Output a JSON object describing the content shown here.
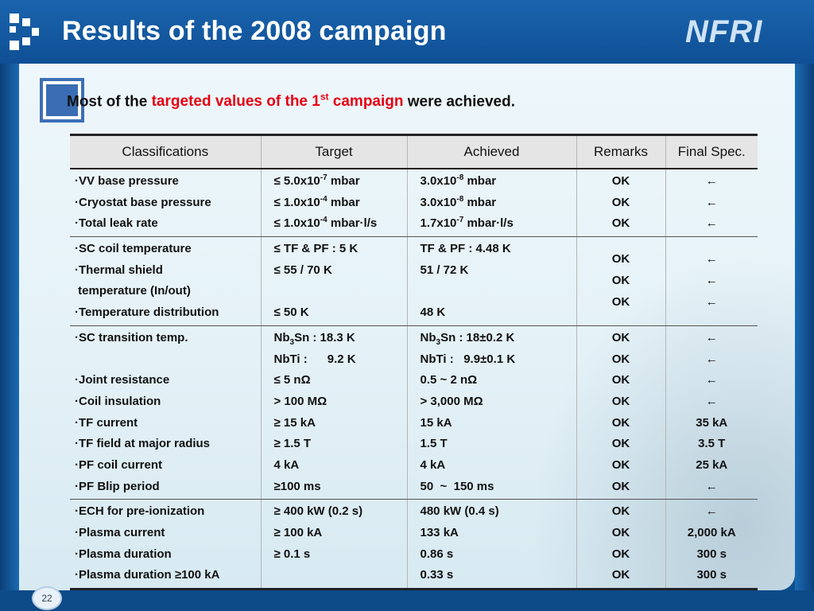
{
  "header": {
    "title": "Results of the 2008 campaign",
    "logo_text": "NFRI"
  },
  "headline": {
    "part1": "Most of the ",
    "highlight_a": "targeted values of the 1",
    "highlight_sup": "st",
    "highlight_b": " campaign",
    "part2": " were achieved."
  },
  "table": {
    "headers": [
      "Classifications",
      "Target",
      "Achieved",
      "Remarks",
      "Final Spec."
    ],
    "g1": {
      "r1": {
        "cls": "·VV base pressure",
        "tgt_a": "≤ 5.0x10",
        "tgt_sup": "-7",
        "tgt_b": " mbar",
        "ach_a": "3.0x10",
        "ach_sup": "-8",
        "ach_b": " mbar",
        "rem": "OK",
        "fin": "←"
      },
      "r2": {
        "cls": "·Cryostat base pressure",
        "tgt_a": "≤ 1.0x10",
        "tgt_sup": "-4",
        "tgt_b": " mbar",
        "ach_a": "3.0x10",
        "ach_sup": "-8",
        "ach_b": " mbar",
        "rem": "OK",
        "fin": "←"
      },
      "r3": {
        "cls": "·Total leak rate",
        "tgt_a": "≤ 1.0x10",
        "tgt_sup": "-4",
        "tgt_b": " mbar·l/s",
        "ach_a": "1.7x10",
        "ach_sup": "-7",
        "ach_b": " mbar·l/s",
        "rem": "OK",
        "fin": "←"
      }
    },
    "g2": {
      "cls": [
        "·SC coil temperature",
        "·Thermal shield",
        " temperature (In/out)",
        "·Temperature distribution"
      ],
      "tgt": [
        "≤ TF & PF : 5 K",
        "≤ 55 / 70 K",
        "",
        "≤ 50 K"
      ],
      "ach": [
        "TF & PF : 4.48 K",
        "51 / 72 K",
        "",
        "48 K"
      ],
      "rem": [
        "OK",
        "OK",
        "OK"
      ],
      "fin": [
        "←",
        "←",
        "←"
      ]
    },
    "g3": {
      "cls": [
        "·SC transition temp.",
        "",
        "·Joint resistance",
        "·Coil insulation",
        "·TF current",
        "·TF field at major radius",
        "·PF coil current",
        "·PF Blip period"
      ],
      "tgt_nb3sn_a": "Nb",
      "tgt_nb3sn_sub": "3",
      "tgt_nb3sn_b": "Sn : 18.3 K",
      "tgt": [
        "",
        "NbTi :      9.2 K",
        "≤ 5 nΩ",
        "> 100 MΩ",
        "≥ 15 kA",
        "≥ 1.5 T",
        "4 kA",
        "≥100 ms"
      ],
      "ach_nb3sn_a": "Nb",
      "ach_nb3sn_sub": "3",
      "ach_nb3sn_b": "Sn : 18±0.2 K",
      "ach": [
        "",
        "NbTi :   9.9±0.1 K",
        "0.5 ~ 2 nΩ",
        "> 3,000 MΩ",
        "15 kA",
        "1.5 T",
        "4 kA",
        "50  ~  150 ms"
      ],
      "rem": [
        "OK",
        "OK",
        "OK",
        "OK",
        "OK",
        "OK",
        "OK",
        "OK"
      ],
      "fin": [
        "←",
        "←",
        "←",
        "←",
        "35 kA",
        "3.5 T",
        "25 kA",
        "←"
      ]
    },
    "g4": {
      "cls": [
        "·ECH for pre-ionization",
        "·Plasma current",
        "·Plasma duration",
        "·Plasma duration ≥100 kA"
      ],
      "tgt": [
        "≥ 400 kW (0.2 s)",
        "≥ 100 kA",
        "≥ 0.1 s",
        ""
      ],
      "ach": [
        "480 kW (0.4 s)",
        "133 kA",
        "0.86 s",
        "0.33 s"
      ],
      "rem": [
        "OK",
        "OK",
        "OK",
        "OK"
      ],
      "fin": [
        "←",
        "2,000 kA",
        "300 s",
        "300 s"
      ]
    }
  },
  "footer": {
    "page_number": "22"
  }
}
